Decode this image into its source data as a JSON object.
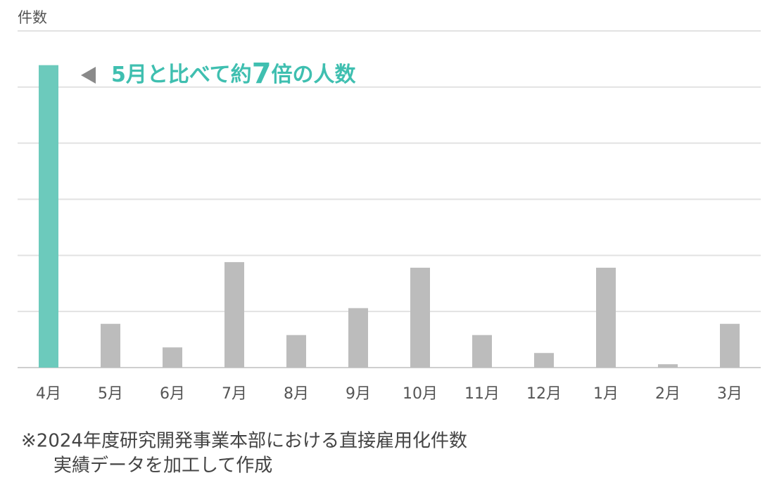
{
  "chart_data": {
    "type": "bar",
    "y_label": "件数",
    "annotation": [
      "5月と比べて約",
      "7",
      "倍の人数"
    ],
    "categories": [
      "4月",
      "5月",
      "6月",
      "7月",
      "8月",
      "9月",
      "10月",
      "11月",
      "12月",
      "1月",
      "2月",
      "3月"
    ],
    "values": [
      5.39,
      0.78,
      0.36,
      1.88,
      0.58,
      1.06,
      1.78,
      0.58,
      0.26,
      1.78,
      0.06,
      0.78
    ],
    "colors": [
      "#6ccabc",
      "#bcbcbc",
      "#bcbcbc",
      "#bcbcbc",
      "#bcbcbc",
      "#bcbcbc",
      "#bcbcbc",
      "#bcbcbc",
      "#bcbcbc",
      "#bcbcbc",
      "#bcbcbc",
      "#bcbcbc"
    ],
    "ylim": [
      0,
      6
    ],
    "yticks": [
      0,
      1,
      2,
      3,
      4,
      5,
      6
    ],
    "grid": true,
    "footnote": [
      "※2024年度研究開発事業本部における直接雇用化件数",
      "実績データを加工して作成"
    ]
  }
}
